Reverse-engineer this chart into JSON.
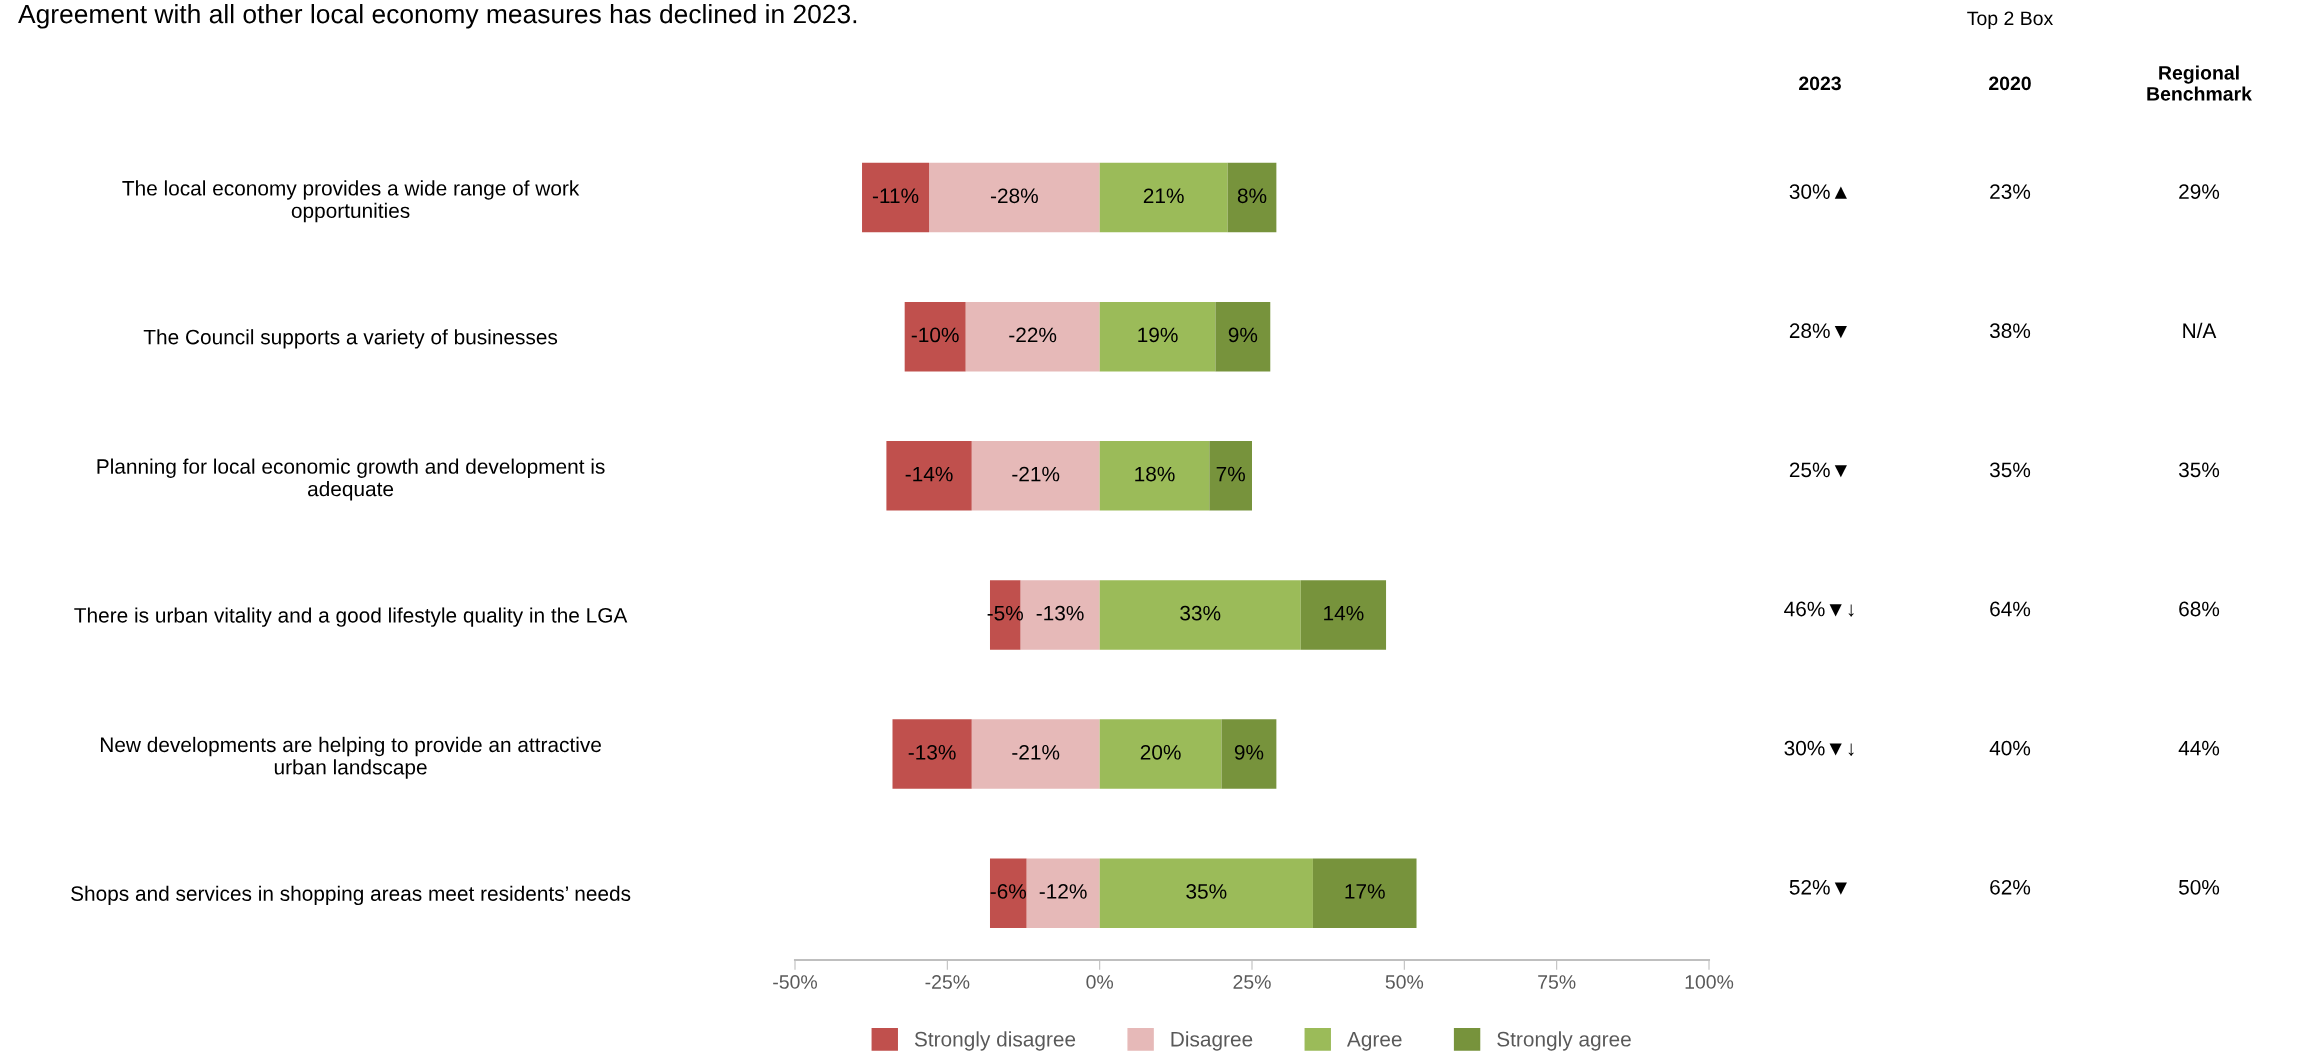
{
  "chart_data": {
    "type": "bar",
    "orientation": "horizontal",
    "stacked": true,
    "title": "Agreement with all other local economy measures has declined in 2023.",
    "categories": [
      "The local economy provides a wide range of work\nopportunities",
      "The Council supports a variety of businesses",
      "Planning for local economic growth and development is\nadequate",
      "There is urban vitality and a good lifestyle quality in the LGA",
      "New developments are helping to provide an attractive\nurban landscape",
      "Shops and services in shopping areas meet residents’ needs"
    ],
    "series": [
      {
        "name": "Disagree",
        "color": "#e6b9b8",
        "values": [
          -28,
          -22,
          -21,
          -13,
          -21,
          -12
        ],
        "value_labels": [
          "-28%",
          "-22%",
          "-21%",
          "-13%",
          "-21%",
          "-12%"
        ]
      },
      {
        "name": "Strongly disagree",
        "color": "#c0504d",
        "values": [
          -11,
          -10,
          -14,
          -5,
          -13,
          -6
        ],
        "value_labels": [
          "-11%",
          "-10%",
          "-14%",
          "-5%",
          "-13%",
          "-6%"
        ]
      },
      {
        "name": "Agree",
        "color": "#9bbb59",
        "values": [
          21,
          19,
          18,
          33,
          20,
          35
        ],
        "value_labels": [
          "21%",
          "19%",
          "18%",
          "33%",
          "20%",
          "35%"
        ]
      },
      {
        "name": "Strongly agree",
        "color": "#77933c",
        "values": [
          8,
          9,
          7,
          14,
          9,
          17
        ],
        "value_labels": [
          "8%",
          "9%",
          "7%",
          "14%",
          "9%",
          "17%"
        ]
      }
    ],
    "xlim": [
      -50,
      100
    ],
    "xticks": [
      {
        "value": -50,
        "label": "-50%"
      },
      {
        "value": -25,
        "label": "-25%"
      },
      {
        "value": 0,
        "label": "0%"
      },
      {
        "value": 25,
        "label": "25%"
      },
      {
        "value": 50,
        "label": "50%"
      },
      {
        "value": 75,
        "label": "75%"
      },
      {
        "value": 100,
        "label": "100%"
      }
    ],
    "grid": false,
    "legend": "bottom",
    "annotations": [
      "Top 2 Box",
      "2023",
      "2020",
      "Regional\nBenchmark",
      "30%▲",
      "23%",
      "29%",
      "28%▼",
      "38%",
      "N/A",
      "25%▼",
      "35%",
      "35%",
      "46%▼↓",
      "64%",
      "68%",
      "30%▼↓",
      "40%",
      "44%",
      "52%▼",
      "62%",
      "50%"
    ]
  }
}
